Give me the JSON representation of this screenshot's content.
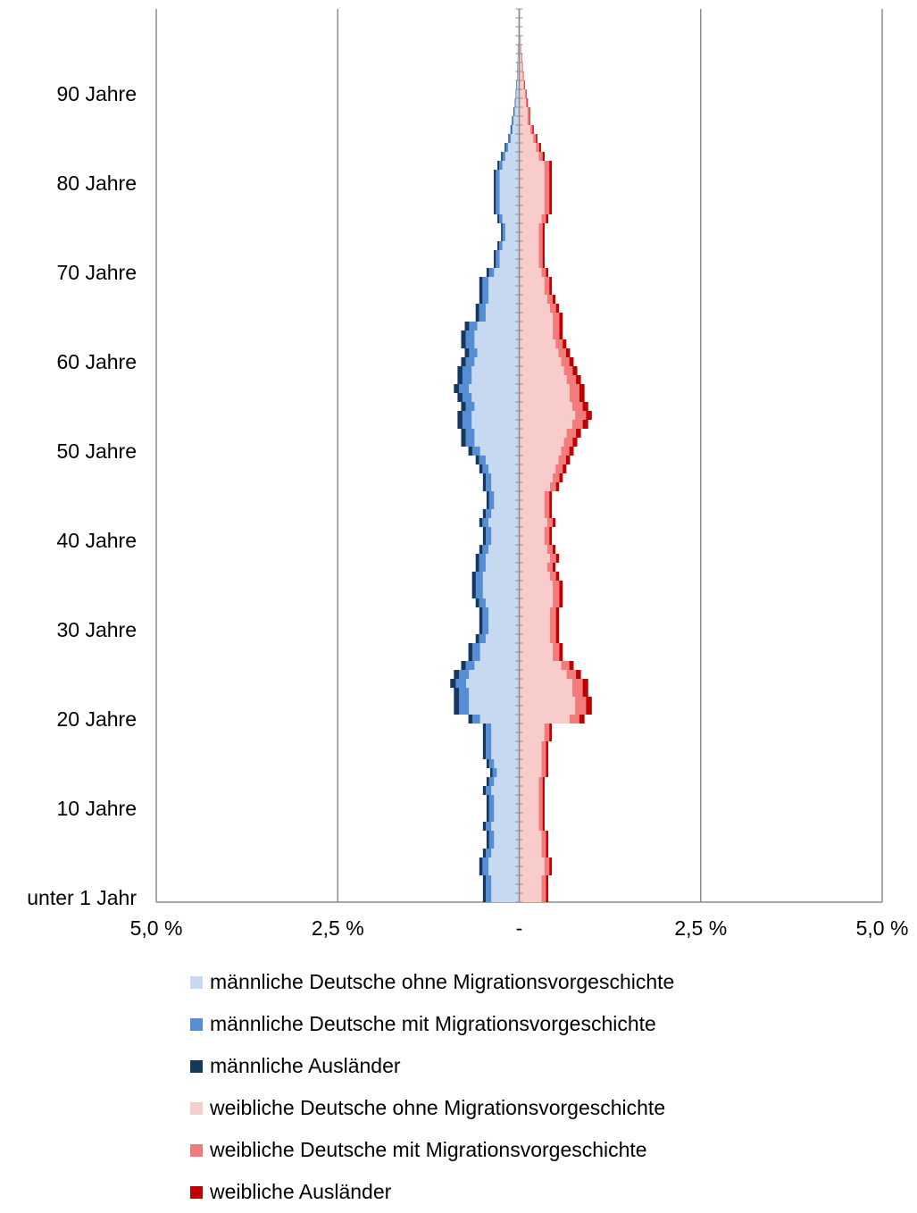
{
  "chart_data": {
    "type": "bar",
    "orientation": "horizontal-population-pyramid",
    "ages": [
      0,
      1,
      2,
      3,
      4,
      5,
      6,
      7,
      8,
      9,
      10,
      11,
      12,
      13,
      14,
      15,
      16,
      17,
      18,
      19,
      20,
      21,
      22,
      23,
      24,
      25,
      26,
      27,
      28,
      29,
      30,
      31,
      32,
      33,
      34,
      35,
      36,
      37,
      38,
      39,
      40,
      41,
      42,
      43,
      44,
      45,
      46,
      47,
      48,
      49,
      50,
      51,
      52,
      53,
      54,
      55,
      56,
      57,
      58,
      59,
      60,
      61,
      62,
      63,
      64,
      65,
      66,
      67,
      68,
      69,
      70,
      71,
      72,
      73,
      74,
      75,
      76,
      77,
      78,
      79,
      80,
      81,
      82,
      83,
      84,
      85,
      86,
      87,
      88,
      89,
      90,
      91,
      92,
      93,
      94,
      95,
      96,
      97,
      98,
      99
    ],
    "y_tick_labels": [
      {
        "age": 0,
        "label": "unter 1 Jahr"
      },
      {
        "age": 10,
        "label": "10 Jahre"
      },
      {
        "age": 20,
        "label": "20 Jahre"
      },
      {
        "age": 30,
        "label": "30 Jahre"
      },
      {
        "age": 40,
        "label": "40 Jahre"
      },
      {
        "age": 50,
        "label": "50 Jahre"
      },
      {
        "age": 60,
        "label": "60 Jahre"
      },
      {
        "age": 70,
        "label": "70 Jahre"
      },
      {
        "age": 80,
        "label": "80 Jahre"
      },
      {
        "age": 90,
        "label": "90 Jahre"
      }
    ],
    "x_tick_labels": [
      "5,0 %",
      "2,5 %",
      "-",
      "2,5 %",
      "5,0 %"
    ],
    "x_tick_values": [
      -5.0,
      -2.5,
      0,
      2.5,
      5.0
    ],
    "xlim": [
      -5.0,
      5.0
    ],
    "grid": true,
    "legend_position": "bottom",
    "male_total": [
      0.5,
      0.5,
      0.5,
      0.55,
      0.55,
      0.5,
      0.45,
      0.45,
      0.5,
      0.45,
      0.45,
      0.45,
      0.5,
      0.45,
      0.4,
      0.45,
      0.5,
      0.5,
      0.5,
      0.5,
      0.7,
      0.9,
      0.9,
      0.9,
      0.95,
      0.9,
      0.8,
      0.7,
      0.7,
      0.6,
      0.55,
      0.55,
      0.55,
      0.6,
      0.65,
      0.65,
      0.65,
      0.6,
      0.6,
      0.55,
      0.5,
      0.5,
      0.55,
      0.5,
      0.45,
      0.45,
      0.5,
      0.5,
      0.55,
      0.6,
      0.7,
      0.8,
      0.8,
      0.85,
      0.85,
      0.8,
      0.85,
      0.9,
      0.85,
      0.85,
      0.8,
      0.75,
      0.8,
      0.8,
      0.75,
      0.6,
      0.6,
      0.55,
      0.55,
      0.55,
      0.45,
      0.35,
      0.35,
      0.3,
      0.25,
      0.25,
      0.3,
      0.35,
      0.35,
      0.35,
      0.35,
      0.35,
      0.3,
      0.25,
      0.2,
      0.15,
      0.12,
      0.1,
      0.08,
      0.06,
      0.05,
      0.04,
      0.03,
      0.03,
      0.02,
      0.02,
      0.01,
      0.01,
      0.01,
      0.01
    ],
    "female_total": [
      0.4,
      0.4,
      0.4,
      0.45,
      0.45,
      0.4,
      0.4,
      0.4,
      0.35,
      0.35,
      0.35,
      0.35,
      0.35,
      0.35,
      0.4,
      0.4,
      0.4,
      0.4,
      0.45,
      0.45,
      0.9,
      1.0,
      1.0,
      0.95,
      0.95,
      0.85,
      0.75,
      0.6,
      0.6,
      0.55,
      0.55,
      0.55,
      0.55,
      0.6,
      0.6,
      0.6,
      0.55,
      0.5,
      0.55,
      0.5,
      0.45,
      0.45,
      0.5,
      0.45,
      0.45,
      0.45,
      0.55,
      0.6,
      0.65,
      0.7,
      0.75,
      0.8,
      0.85,
      0.95,
      1.0,
      0.95,
      0.9,
      0.9,
      0.85,
      0.8,
      0.75,
      0.7,
      0.65,
      0.6,
      0.6,
      0.6,
      0.55,
      0.5,
      0.45,
      0.45,
      0.4,
      0.35,
      0.35,
      0.35,
      0.35,
      0.35,
      0.4,
      0.45,
      0.45,
      0.45,
      0.45,
      0.45,
      0.45,
      0.35,
      0.3,
      0.25,
      0.2,
      0.15,
      0.15,
      0.12,
      0.1,
      0.08,
      0.06,
      0.05,
      0.04,
      0.03,
      0.02,
      0.01,
      0.01,
      0.01
    ],
    "series": [
      {
        "name": "männliche Deutsche ohne Migrationsvorgeschichte",
        "side": "male",
        "color": "#c6d9f1",
        "share": 0.77
      },
      {
        "name": "männliche Deutsche mit Migrationsvorgeschichte",
        "side": "male",
        "color": "#558ed5",
        "share": 0.15
      },
      {
        "name": "männliche Ausländer",
        "side": "male",
        "color": "#17375e",
        "share": 0.08
      },
      {
        "name": "weibliche Deutsche ohne Migrationsvorgeschichte",
        "side": "female",
        "color": "#f9cccc",
        "share": 0.77
      },
      {
        "name": "weibliche Deutsche mit Migrationsvorgeschichte",
        "side": "female",
        "color": "#f27b7b",
        "share": 0.15
      },
      {
        "name": "weibliche Ausländer",
        "side": "female",
        "color": "#c00000",
        "share": 0.08
      }
    ]
  }
}
